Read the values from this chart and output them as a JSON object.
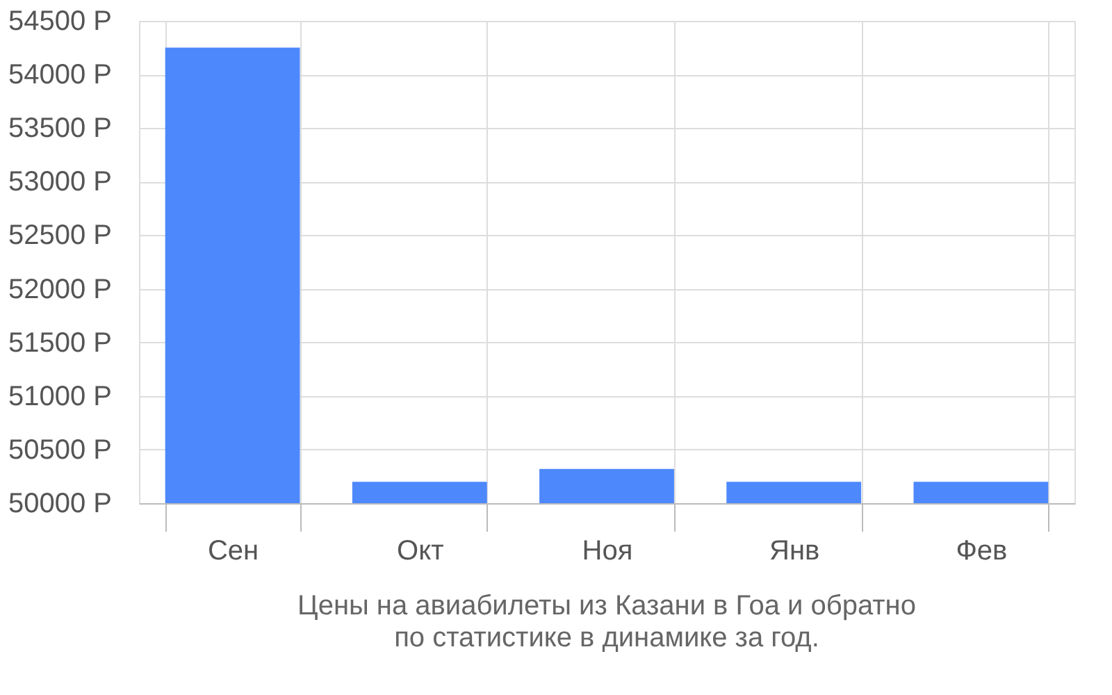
{
  "chart_data": {
    "type": "bar",
    "title": "Цены на авиабилеты из Казани в Гоа и обратно",
    "subtitle": "по статистике в динамике за год.",
    "categories": [
      "Сен",
      "Окт",
      "Ноя",
      "Янв",
      "Фев"
    ],
    "values": [
      54250,
      50200,
      50320,
      50200,
      50200
    ],
    "color": "#4d88fc",
    "ylim": [
      50000,
      54500
    ],
    "yticks": [
      {
        "value": 50000,
        "label": "50000 Р"
      },
      {
        "value": 50500,
        "label": "50500 Р"
      },
      {
        "value": 51000,
        "label": "51000 Р"
      },
      {
        "value": 51500,
        "label": "51500 Р"
      },
      {
        "value": 52000,
        "label": "52000 Р"
      },
      {
        "value": 52500,
        "label": "52500 Р"
      },
      {
        "value": 53000,
        "label": "53000 Р"
      },
      {
        "value": 53500,
        "label": "53500 Р"
      },
      {
        "value": 54000,
        "label": "54000 Р"
      },
      {
        "value": 54500,
        "label": "54500 Р"
      }
    ],
    "grid": true
  }
}
